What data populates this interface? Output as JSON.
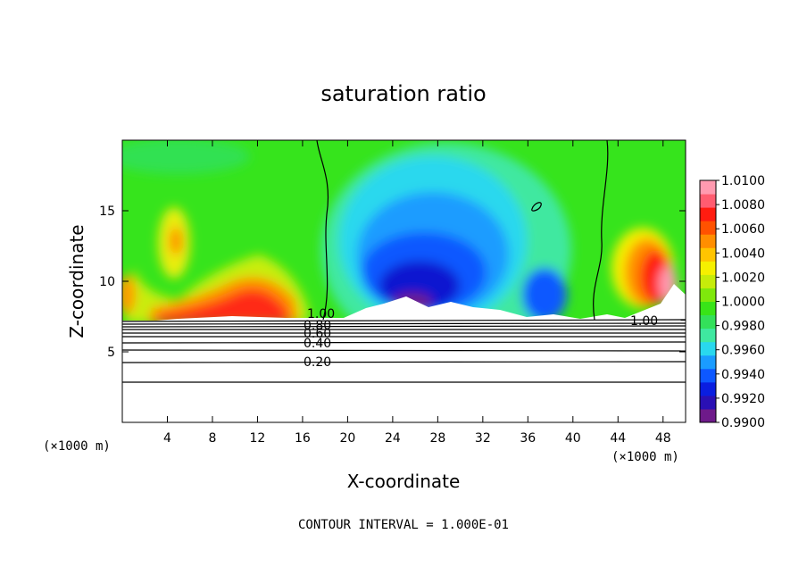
{
  "chart_data": {
    "type": "heatmap",
    "title": "saturation ratio",
    "xlabel": "X-coordinate",
    "ylabel": "Z-coordinate",
    "x_unit_left": "(×1000 m)",
    "x_unit_right": "(×1000 m)",
    "xlim": [
      0,
      50
    ],
    "ylim": [
      0,
      20
    ],
    "x_ticks": [
      4,
      8,
      12,
      16,
      20,
      24,
      28,
      32,
      36,
      40,
      44,
      48
    ],
    "y_ticks": [
      5,
      10,
      15
    ],
    "colorbar": {
      "labels": [
        "1.0100",
        "1.0080",
        "1.0060",
        "1.0040",
        "1.0020",
        "1.0000",
        "0.9980",
        "0.9960",
        "0.9940",
        "0.9920",
        "0.9900"
      ],
      "min": 0.99,
      "max": 1.01,
      "colors": [
        "#6e1a8a",
        "#2a10b4",
        "#0a1ee0",
        "#0d58ff",
        "#1a9cff",
        "#29d8ee",
        "#3fe8a0",
        "#33e05a",
        "#38e418",
        "#7fe80c",
        "#c6ec0a",
        "#f6f000",
        "#ffc400",
        "#ff8e00",
        "#ff5200",
        "#ff1c10",
        "#ff5c70",
        "#ff9ab0"
      ]
    },
    "contour_labels": [
      "1.00",
      "0.80",
      "0.60",
      "0.40",
      "0.20",
      "1.00"
    ],
    "contour_levels": [
      0.2,
      0.3,
      0.4,
      0.5,
      0.6,
      0.7,
      0.8,
      0.9,
      1.0
    ],
    "footer": "CONTOUR INTERVAL = 1.000E-01"
  }
}
